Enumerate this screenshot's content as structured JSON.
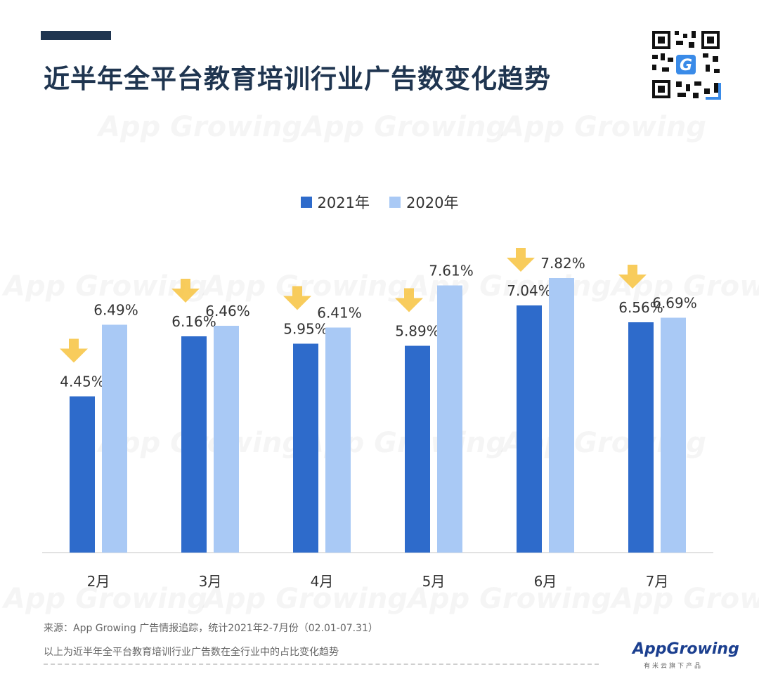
{
  "header": {
    "title": "近半年全平台教育培训行业广告数变化趋势"
  },
  "watermark_text": "App Growing",
  "chart_data": {
    "type": "bar",
    "categories": [
      "2月",
      "3月",
      "4月",
      "5月",
      "6月",
      "7月"
    ],
    "series": [
      {
        "name": "2021年",
        "values": [
          4.45,
          6.16,
          5.95,
          5.89,
          7.04,
          6.56
        ],
        "labels": [
          "4.45%",
          "6.16%",
          "5.95%",
          "5.89%",
          "7.04%",
          "6.56%"
        ],
        "color": "#2e6bcb"
      },
      {
        "name": "2020年",
        "values": [
          6.49,
          6.46,
          6.41,
          7.61,
          7.82,
          6.69
        ],
        "labels": [
          "6.49%",
          "6.46%",
          "6.41%",
          "7.61%",
          "7.82%",
          "6.69%"
        ],
        "color": "#a9c9f5"
      }
    ],
    "ylim": [
      0,
      9
    ],
    "grid": false,
    "legend": "top-center",
    "annotation": "down-arrow above each 2021 bar",
    "arrow_color": "#f7c64a"
  },
  "footer": {
    "source": "来源：App Growing 广告情报追踪，统计2021年2-7月份（02.01-07.31）",
    "note": "以上为近半年全平台教育培训行业广告数在全行业中的占比变化趋势"
  },
  "brand": {
    "name": "AppGrowing",
    "tagline": "有米云旗下产品"
  }
}
